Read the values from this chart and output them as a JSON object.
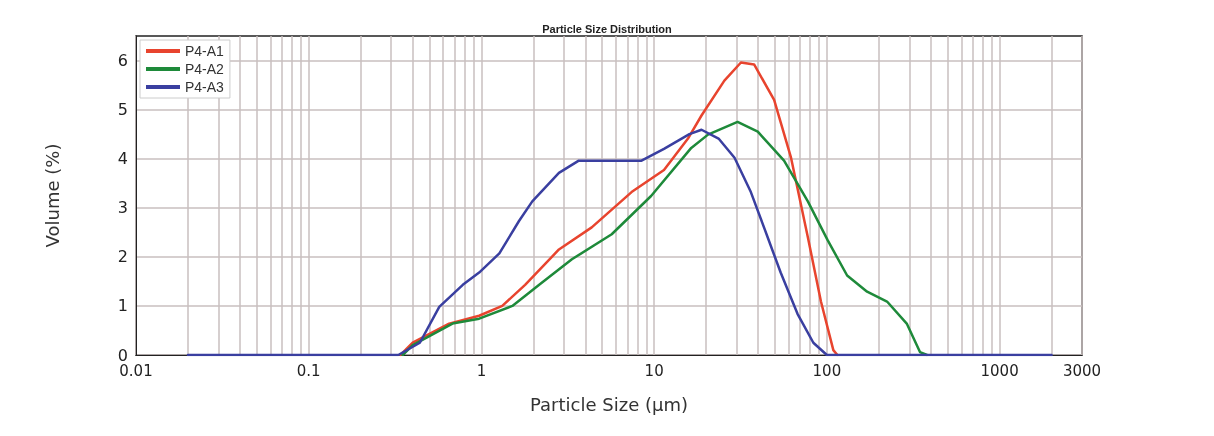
{
  "chart_data": {
    "type": "line",
    "title": "Particle Size Distribution",
    "xlabel": "Particle Size (µm)",
    "ylabel": "Volume (%)",
    "log": "x",
    "xlim": [
      0.01,
      3000
    ],
    "xticks": [
      0.01,
      0.1,
      1,
      10,
      100,
      1000,
      3000
    ],
    "ylim": [
      0,
      6.5
    ],
    "yticks": [
      0,
      1,
      2,
      3,
      4,
      5,
      6
    ],
    "grid": true,
    "legend": "top left",
    "marker": "none",
    "line_style": "solid",
    "series": [
      {
        "name": "P4-A1",
        "color": "#e8442e",
        "x": [
          0.34,
          0.4,
          0.65,
          0.97,
          1.32,
          1.79,
          2.81,
          4.35,
          7.4,
          11.4,
          15.7,
          18.8,
          25.5,
          31.8,
          37.9,
          49.5,
          62,
          77.6,
          92.4,
          109,
          115
        ],
        "values": [
          0,
          0.25,
          0.64,
          0.8,
          1.0,
          1.43,
          2.15,
          2.6,
          3.32,
          3.77,
          4.41,
          4.88,
          5.59,
          5.96,
          5.92,
          5.2,
          4.02,
          2.4,
          1.09,
          0.1,
          0
        ]
      },
      {
        "name": "P4-A2",
        "color": "#1e8a3a",
        "x": [
          0.35,
          0.4,
          0.68,
          0.97,
          1.51,
          2.16,
          3.34,
          5.68,
          9.6,
          16.4,
          20.5,
          30.4,
          39.8,
          56.5,
          77.6,
          101,
          131,
          171,
          223,
          290,
          346,
          380
        ],
        "values": [
          0,
          0.2,
          0.64,
          0.74,
          1.0,
          1.43,
          1.95,
          2.46,
          3.24,
          4.22,
          4.49,
          4.75,
          4.55,
          3.96,
          3.13,
          2.34,
          1.62,
          1.29,
          1.09,
          0.64,
          0.06,
          0
        ]
      },
      {
        "name": "P4-A3",
        "color": "#3a3fa0",
        "x": [
          0.02,
          0.33,
          0.44,
          0.57,
          0.78,
          0.97,
          1.27,
          1.65,
          1.97,
          2.81,
          3.66,
          8.45,
          11.4,
          16,
          18.8,
          23.6,
          29.2,
          36.3,
          45.4,
          54,
          67.6,
          83.5,
          100,
          2000
        ],
        "values": [
          0,
          0,
          0.25,
          0.98,
          1.43,
          1.68,
          2.07,
          2.73,
          3.13,
          3.71,
          3.96,
          3.96,
          4.2,
          4.5,
          4.59,
          4.41,
          4.02,
          3.32,
          2.4,
          1.68,
          0.84,
          0.25,
          0,
          0
        ]
      }
    ]
  }
}
